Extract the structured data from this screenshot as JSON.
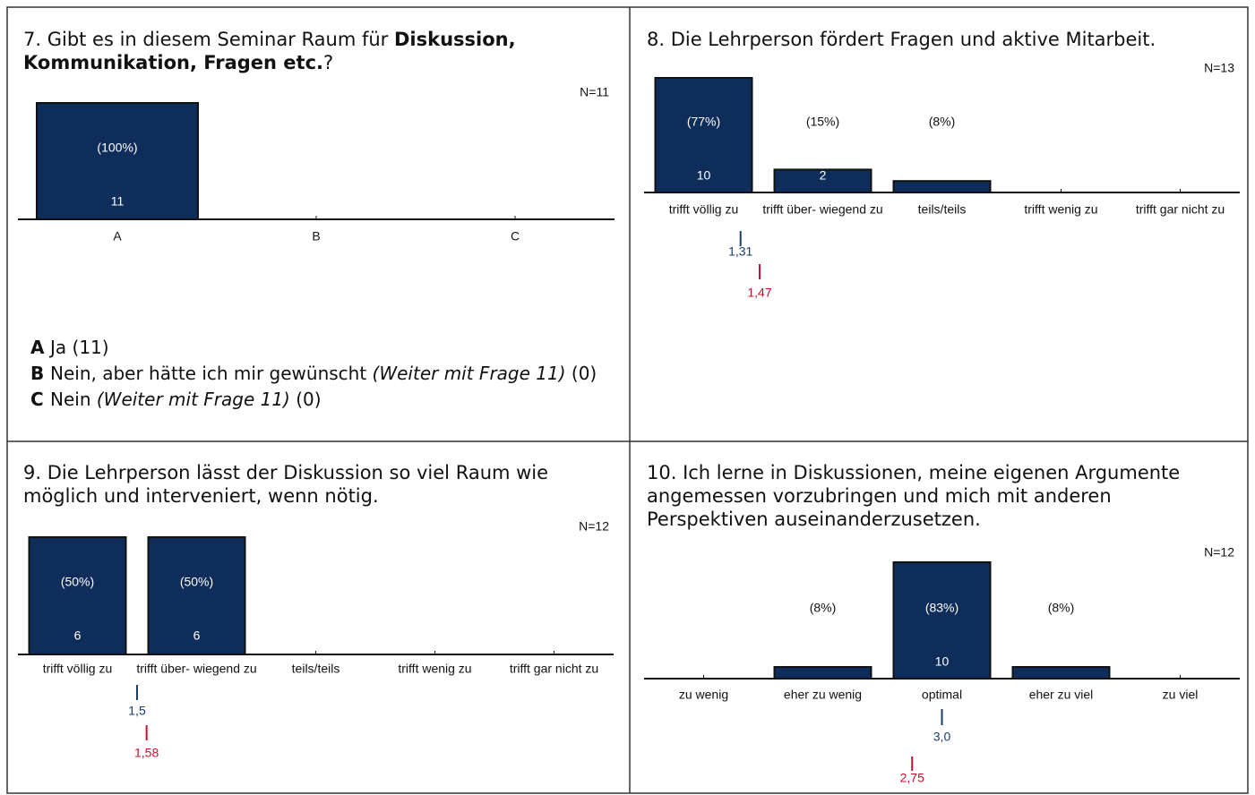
{
  "chart_data": [
    {
      "type": "bar",
      "title": [
        {
          "text": "7. Gibt es in diesem Seminar Raum für "
        },
        {
          "text": "Diskussion, Kommunikation, Fragen etc.",
          "bold": true
        },
        {
          "text": "?"
        }
      ],
      "n_label": "N=11",
      "categories": [
        "A",
        "B",
        "C"
      ],
      "values": [
        11,
        0,
        0
      ],
      "percents": [
        100,
        null,
        null
      ],
      "percent_labels": [
        "(100%)",
        null,
        null
      ],
      "ylim": [
        0,
        11
      ],
      "color": "#0f2d5a",
      "legend": [
        {
          "key": "A",
          "parts": [
            {
              "text": "Ja (11)"
            }
          ]
        },
        {
          "key": "B",
          "parts": [
            {
              "text": "Nein, aber hätte ich mir gewünscht "
            },
            {
              "text": "(Weiter mit Frage 11)",
              "italic": true
            },
            {
              "text": " (0)"
            }
          ]
        },
        {
          "key": "C",
          "parts": [
            {
              "text": "Nein "
            },
            {
              "text": "(Weiter mit Frage 11)",
              "italic": true
            },
            {
              "text": " (0)"
            }
          ]
        }
      ]
    },
    {
      "type": "bar",
      "title": [
        {
          "text": "8. Die Lehrperson fördert Fragen und aktive Mitarbeit."
        }
      ],
      "n_label": "N=13",
      "categories": [
        "trifft völlig zu",
        "trifft über- wiegend zu",
        "teils/teils",
        "trifft wenig zu",
        "trifft gar nicht zu"
      ],
      "values": [
        10,
        2,
        1,
        0,
        0
      ],
      "percents": [
        77,
        15,
        8,
        null,
        null
      ],
      "percent_labels": [
        "(77%)",
        "(15%)",
        "(8%)",
        null,
        null
      ],
      "ylim": [
        0,
        10
      ],
      "color": "#0f2d5a",
      "means": [
        {
          "value": 1.31,
          "label": "1,31",
          "color": "#1a3d6e"
        },
        {
          "value": 1.47,
          "label": "1,47",
          "color": "#c8102e"
        }
      ]
    },
    {
      "type": "bar",
      "title": [
        {
          "text": "9. Die Lehrperson lässt der Diskussion so viel Raum wie möglich und interveniert, wenn nötig."
        }
      ],
      "n_label": "N=12",
      "categories": [
        "trifft völlig zu",
        "trifft über- wiegend zu",
        "teils/teils",
        "trifft wenig zu",
        "trifft gar nicht zu"
      ],
      "values": [
        6,
        6,
        0,
        0,
        0
      ],
      "percents": [
        50,
        50,
        null,
        null,
        null
      ],
      "percent_labels": [
        "(50%)",
        "(50%)",
        null,
        null,
        null
      ],
      "ylim": [
        0,
        6
      ],
      "color": "#0f2d5a",
      "means": [
        {
          "value": 1.5,
          "label": "1,5",
          "color": "#1a3d6e"
        },
        {
          "value": 1.58,
          "label": "1,58",
          "color": "#c8102e"
        }
      ]
    },
    {
      "type": "bar",
      "title": [
        {
          "text": "10. Ich lerne in Diskussionen, meine eigenen Argumente angemessen vorzubringen und mich mit anderen Perspektiven auseinanderzusetzen."
        }
      ],
      "n_label": "N=12",
      "categories": [
        "zu wenig",
        "eher zu wenig",
        "optimal",
        "eher zu viel",
        "zu viel"
      ],
      "values": [
        0,
        1,
        10,
        1,
        0
      ],
      "percents": [
        null,
        8,
        83,
        8,
        null
      ],
      "percent_labels": [
        null,
        "(8%)",
        "(83%)",
        "(8%)",
        null
      ],
      "ylim": [
        0,
        10
      ],
      "color": "#0f2d5a",
      "means": [
        {
          "value": 3.0,
          "label": "3,0",
          "color": "#1a3d6e"
        },
        {
          "value": 2.75,
          "label": "2,75",
          "color": "#c8102e"
        }
      ]
    }
  ]
}
